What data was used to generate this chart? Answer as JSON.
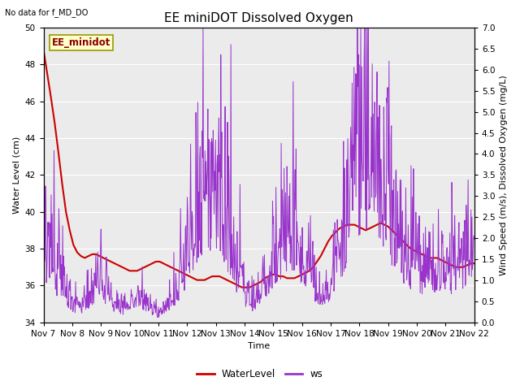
{
  "title": "EE miniDOT Dissolved Oxygen",
  "top_left_text": "No data for f_MD_DO",
  "annotation_text": "EE_minidot",
  "xlabel": "Time",
  "ylabel_left": "Water Level (cm)",
  "ylabel_right": "Wind Speed (m/s), Dissolved Oxygen (mg/L)",
  "ylim_left": [
    34,
    50
  ],
  "ylim_right": [
    0.0,
    7.0
  ],
  "yticks_left": [
    34,
    36,
    38,
    40,
    42,
    44,
    46,
    48,
    50
  ],
  "yticks_right": [
    0.0,
    0.5,
    1.0,
    1.5,
    2.0,
    2.5,
    3.0,
    3.5,
    4.0,
    4.5,
    5.0,
    5.5,
    6.0,
    6.5,
    7.0
  ],
  "xtick_labels": [
    "Nov 7",
    "Nov 8",
    "Nov 9",
    "Nov 10",
    "Nov 11",
    "Nov 12",
    "Nov 13",
    "Nov 14",
    "Nov 15",
    "Nov 16",
    "Nov 17",
    "Nov 18",
    "Nov 19",
    "Nov 20",
    "Nov 21",
    "Nov 22"
  ],
  "legend_entries": [
    "WaterLevel",
    "ws"
  ],
  "line_color_wl": "#cc0000",
  "line_color_ws": "#9933cc",
  "background_color": "#ffffff",
  "plot_bg_color": "#ebebeb",
  "title_fontsize": 11,
  "label_fontsize": 8,
  "tick_fontsize": 7.5,
  "wl_data": [
    48.8,
    47.5,
    46.2,
    44.8,
    43.2,
    41.5,
    40.0,
    39.0,
    38.2,
    37.8,
    37.6,
    37.5,
    37.6,
    37.7,
    37.7,
    37.6,
    37.5,
    37.4,
    37.3,
    37.2,
    37.1,
    37.0,
    36.9,
    36.8,
    36.8,
    36.8,
    36.9,
    37.0,
    37.1,
    37.2,
    37.3,
    37.3,
    37.2,
    37.1,
    37.0,
    36.9,
    36.8,
    36.7,
    36.6,
    36.5,
    36.4,
    36.3,
    36.3,
    36.3,
    36.4,
    36.5,
    36.5,
    36.5,
    36.4,
    36.3,
    36.2,
    36.1,
    36.0,
    35.9,
    35.9,
    35.9,
    36.0,
    36.1,
    36.2,
    36.4,
    36.5,
    36.6,
    36.6,
    36.5,
    36.5,
    36.4,
    36.4,
    36.4,
    36.5,
    36.6,
    36.7,
    36.8,
    37.0,
    37.3,
    37.6,
    38.0,
    38.4,
    38.7,
    38.9,
    39.1,
    39.2,
    39.3,
    39.3,
    39.3,
    39.2,
    39.1,
    39.0,
    39.1,
    39.2,
    39.3,
    39.4,
    39.3,
    39.2,
    39.0,
    38.8,
    38.6,
    38.4,
    38.2,
    38.0,
    37.9,
    37.8,
    37.7,
    37.6,
    37.5,
    37.5,
    37.5,
    37.4,
    37.3,
    37.2,
    37.1,
    37.0,
    37.0,
    37.0,
    37.1,
    37.2,
    37.2
  ],
  "ws_envelope": [
    2.0,
    2.1,
    1.9,
    1.7,
    1.5,
    1.3,
    1.0,
    0.8,
    0.6,
    0.5,
    0.5,
    0.6,
    0.8,
    1.0,
    1.2,
    1.3,
    1.2,
    1.0,
    0.8,
    0.6,
    0.5,
    0.4,
    0.4,
    0.5,
    0.6,
    0.7,
    0.7,
    0.6,
    0.5,
    0.4,
    0.3,
    0.3,
    0.4,
    0.5,
    0.7,
    0.9,
    1.2,
    1.5,
    1.9,
    2.3,
    2.7,
    3.1,
    3.4,
    3.7,
    3.9,
    4.0,
    3.8,
    3.5,
    3.2,
    2.8,
    2.4,
    2.0,
    1.6,
    1.2,
    0.9,
    0.7,
    0.6,
    0.7,
    0.9,
    1.2,
    1.5,
    1.8,
    2.1,
    2.3,
    2.5,
    2.6,
    2.7,
    2.6,
    2.4,
    2.1,
    1.8,
    1.5,
    1.2,
    1.0,
    0.9,
    0.9,
    1.0,
    1.3,
    1.7,
    2.2,
    2.8,
    3.4,
    4.0,
    4.5,
    4.9,
    5.2,
    5.4,
    5.5,
    5.4,
    5.1,
    4.8,
    4.4,
    3.9,
    3.4,
    2.9,
    2.5,
    2.2,
    2.0,
    1.9,
    1.8,
    1.8,
    1.7,
    1.6,
    1.6,
    1.6,
    1.6,
    1.6,
    1.6,
    1.6,
    1.7,
    1.8,
    1.9,
    2.0,
    2.0,
    1.9,
    1.8
  ]
}
